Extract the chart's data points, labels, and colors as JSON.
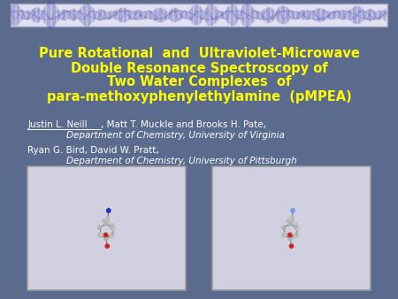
{
  "background_color": "#5b6b8e",
  "title_lines": [
    "Pure Rotational  and  Ultraviolet-Microwave",
    "Double Resonance Spectroscopy of",
    "Two Water Complexes  of",
    "para-methoxyphenylethylamine  (pMPEA)"
  ],
  "title_color": "#ffff00",
  "title_fontsize": 10.5,
  "title_fontweight": "bold",
  "author1_underlined": "Justin L. Neill",
  "author1_rest": ", Matt T. Muckle and Brooks H. Pate,",
  "author1_color": "#ffffff",
  "author1_fontsize": 7.5,
  "affil1": "Department of Chemistry, University of Virginia",
  "affil1_color": "#ffffff",
  "affil1_fontsize": 7.5,
  "author2": "Ryan G. Bird, David W. Pratt,",
  "author2_color": "#ffffff",
  "author2_fontsize": 7.5,
  "affil2": "Department of Chemistry, University of Pittsburgh",
  "affil2_color": "#ffffff",
  "affil2_fontsize": 7.5,
  "header_bg": "#e0e0f0",
  "header_border": "#9999bb",
  "header_wave_color": "#4444aa",
  "mol_box_bg": "#d0d0e0",
  "mol_box_border": "#999999"
}
